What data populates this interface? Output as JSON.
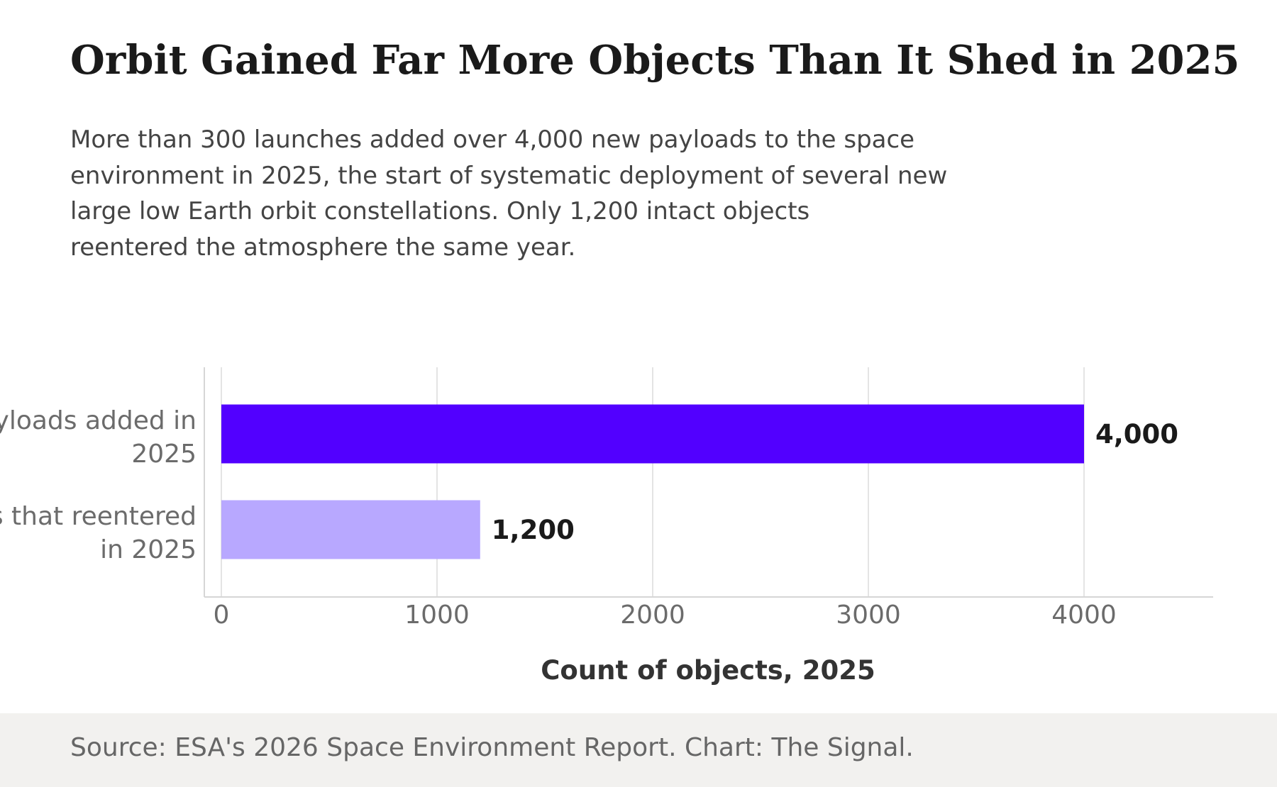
{
  "header": {
    "title": "Orbit Gained Far More Objects Than It Shed in 2025",
    "subtitle_lines": [
      "More than 300 launches added over 4,000 new payloads to the space",
      "environment in 2025, the start of systematic deployment of several new",
      "large low Earth orbit constellations. Only 1,200 intact objects",
      "reentered the atmosphere the same year."
    ]
  },
  "chart_data": {
    "type": "bar",
    "orientation": "horizontal",
    "categories": [
      [
        "New payloads added in",
        "2025"
      ],
      [
        "Intact objects that reentered",
        "in 2025"
      ]
    ],
    "values": [
      4000,
      1200
    ],
    "value_labels": [
      "4,000",
      "1,200"
    ],
    "colors": [
      "#5200ff",
      "#b8a8ff"
    ],
    "xlabel": "Count of objects, 2025",
    "xlim": [
      0,
      4600
    ],
    "xticks": [
      0,
      1000,
      2000,
      3000,
      4000
    ],
    "xtick_labels": [
      "0",
      "1000",
      "2000",
      "3000",
      "4000"
    ],
    "grid": true
  },
  "footer": {
    "source": "Source: ESA's 2026 Space Environment Report. Chart: The Signal."
  }
}
